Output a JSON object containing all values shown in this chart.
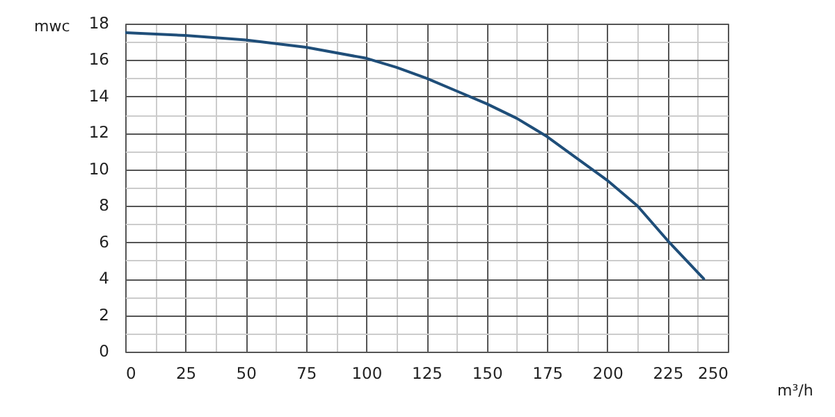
{
  "chart_data": {
    "type": "line",
    "xlabel": "m³/h",
    "ylabel": "mwc",
    "x": [
      0,
      25,
      50,
      75,
      100,
      112.5,
      125,
      137.5,
      150,
      162.5,
      175,
      187.5,
      200,
      212.5,
      225,
      240
    ],
    "series": [
      {
        "color": "#1f4e79",
        "values": [
          17.5,
          17.35,
          17.1,
          16.7,
          16.1,
          15.6,
          15.0,
          14.3,
          13.6,
          12.8,
          11.8,
          10.6,
          9.4,
          8.0,
          6.1,
          4.0
        ]
      }
    ],
    "xlim": [
      0,
      250
    ],
    "ylim": [
      0,
      18
    ],
    "xticks": [
      0,
      {
        "value": 12.5,
        "label": null
      },
      25,
      {
        "value": 37.5,
        "label": null
      },
      50,
      {
        "value": 62.5,
        "label": null
      },
      75,
      {
        "value": 87.5,
        "label": null
      },
      100,
      {
        "value": 112.5,
        "label": null
      },
      125,
      {
        "value": 137.5,
        "label": null
      },
      150,
      {
        "value": 162.5,
        "label": null
      },
      175,
      {
        "value": 187.5,
        "label": null
      },
      200,
      {
        "value": 212.5,
        "label": null
      },
      225,
      {
        "value": 237.5,
        "label": null
      },
      250
    ],
    "yticks": [
      0,
      {
        "value": 1,
        "label": null
      },
      2,
      {
        "value": 3,
        "label": null
      },
      4,
      {
        "value": 5,
        "label": null
      },
      6,
      {
        "value": 7,
        "label": null
      },
      8,
      {
        "value": 9,
        "label": null
      },
      10,
      {
        "value": 11,
        "label": null
      },
      12,
      {
        "value": 13,
        "label": null
      },
      14,
      {
        "value": 15,
        "label": null
      },
      16,
      {
        "value": 17,
        "label": null
      },
      18
    ],
    "grid": true,
    "marker": "none",
    "line_style": "solid"
  }
}
